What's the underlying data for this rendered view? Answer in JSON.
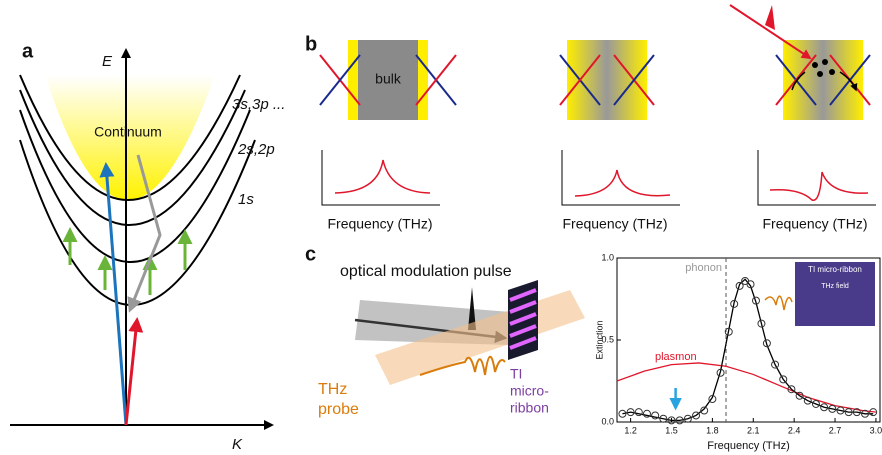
{
  "panel_a": {
    "label": "a",
    "energy_axis": "E",
    "momentum_axis": "K",
    "continuum": "Continuum",
    "levels": [
      "3s,3p ...",
      "2s,2p",
      "1s"
    ]
  },
  "panel_b": {
    "label": "b",
    "bulk": "bulk",
    "x_labels": [
      "Frequency (THz)",
      "Frequency (THz)",
      "Frequency (THz)"
    ]
  },
  "panel_c": {
    "label": "c",
    "pulse": "optical modulation pulse",
    "probe": [
      "THz",
      "probe"
    ],
    "sample": [
      "TI",
      "micro-",
      "ribbon"
    ],
    "chart": {
      "type": "scatter",
      "x_label": "Frequency (THz)",
      "y_label": "Extinction",
      "phonon_label": "phonon",
      "plasmon_label": "plasmon",
      "inset_title": "TI micro-ribbon",
      "inset_field": "THz field",
      "phonon_x": 1.9,
      "arrow_x": 1.53,
      "xlim": [
        1.1,
        3.03
      ],
      "ylim": [
        0,
        1
      ],
      "xticks": [
        1.2,
        1.5,
        1.8,
        2.1,
        2.4,
        2.7,
        {
          "value": 3,
          "label": "3.0"
        }
      ],
      "yticks": [
        {
          "value": 0,
          "label": "0.0"
        },
        0.5,
        {
          "value": 1,
          "label": "1.0"
        }
      ],
      "x": [
        1.14,
        1.2,
        1.26,
        1.32,
        1.38,
        1.44,
        1.5,
        1.56,
        1.62,
        1.68,
        1.74,
        1.8,
        1.86,
        1.92,
        1.96,
        2.0,
        2.04,
        2.08,
        2.12,
        2.16,
        2.2,
        2.26,
        2.32,
        2.38,
        2.44,
        2.5,
        2.56,
        2.62,
        2.68,
        2.74,
        2.8,
        2.86,
        2.92,
        2.98
      ],
      "values": [
        0.05,
        0.06,
        0.06,
        0.05,
        0.04,
        0.02,
        0.01,
        0.01,
        0.02,
        0.04,
        0.07,
        0.14,
        0.3,
        0.55,
        0.72,
        0.83,
        0.86,
        0.84,
        0.74,
        0.6,
        0.48,
        0.35,
        0.26,
        0.2,
        0.16,
        0.13,
        0.11,
        0.09,
        0.08,
        0.07,
        0.06,
        0.06,
        0.05,
        0.06
      ],
      "fit": [
        0.05,
        0.06,
        0.05,
        0.04,
        0.03,
        0.02,
        0.01,
        0.01,
        0.02,
        0.04,
        0.08,
        0.15,
        0.31,
        0.56,
        0.73,
        0.84,
        0.87,
        0.83,
        0.73,
        0.6,
        0.47,
        0.35,
        0.26,
        0.2,
        0.16,
        0.13,
        0.11,
        0.09,
        0.08,
        0.07,
        0.06,
        0.06,
        0.05,
        0.05
      ],
      "plasmon_x": [
        1.1,
        1.3,
        1.5,
        1.7,
        1.9,
        2.1,
        2.3,
        2.5,
        2.7,
        2.9,
        3.0
      ],
      "plasmon": [
        0.25,
        0.31,
        0.35,
        0.36,
        0.34,
        0.29,
        0.22,
        0.15,
        0.1,
        0.07,
        0.06
      ]
    }
  }
}
